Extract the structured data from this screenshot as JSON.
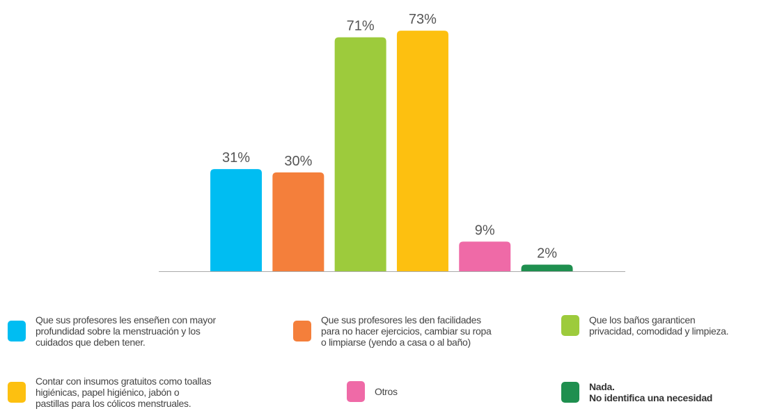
{
  "chart_data": {
    "type": "bar",
    "categories": [
      "Que sus profesores les enseñen con mayor\nprofundidad sobre la menstruación y los\ncuidados que deben tener.",
      "Que sus profesores les den facilidades\npara no hacer ejercicios, cambiar su ropa\no limpiarse (yendo a casa o al baño)",
      "Que los baños garanticen\nprivacidad, comodidad y limpieza.",
      "Contar con insumos gratuitos como toallas\nhigiénicas, papel higiénico, jabón o\npastillas para los cólicos menstruales.",
      "Otros",
      "Nada.\nNo identifica una necesidad"
    ],
    "values": [
      31,
      30,
      71,
      73,
      9,
      2
    ],
    "value_labels": [
      "31%",
      "30%",
      "71%",
      "73%",
      "9%",
      "2%"
    ],
    "colors": [
      "#00bdf2",
      "#f47f3b",
      "#9dcb3c",
      "#fdc010",
      "#ef6aa7",
      "#1f8f4f"
    ],
    "ylim": [
      0,
      80
    ]
  }
}
